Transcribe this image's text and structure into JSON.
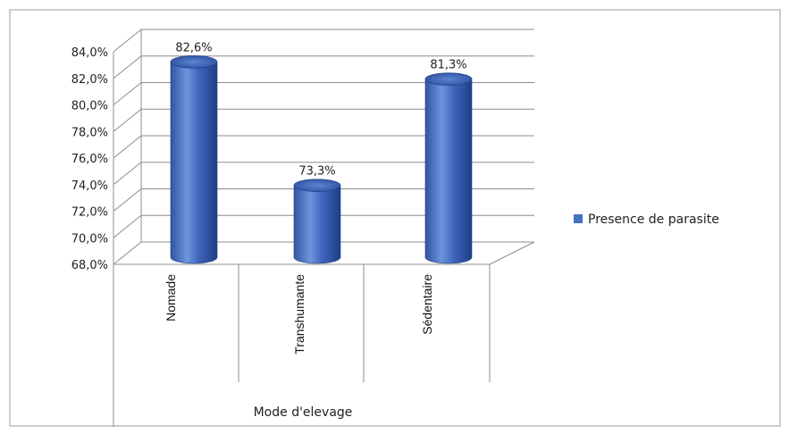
{
  "chart_data": {
    "type": "bar",
    "style": "3d-cylinder",
    "categories": [
      "Nomade",
      "Transhumante",
      "Sédentaire"
    ],
    "series": [
      {
        "name": "Presence de parasite",
        "values": [
          82.6,
          73.3,
          81.3
        ],
        "color": "#4472c4"
      }
    ],
    "data_labels": [
      "82,6%",
      "73,3%",
      "81,3%"
    ],
    "xlabel": "Mode d'elevage",
    "ylabel": "",
    "ylim": [
      68,
      84
    ],
    "yticks": [
      "68,0%",
      "70,0%",
      "72,0%",
      "74,0%",
      "76,0%",
      "78,0%",
      "80,0%",
      "82,0%",
      "84,0%"
    ],
    "grid": true,
    "legend_position": "right"
  }
}
